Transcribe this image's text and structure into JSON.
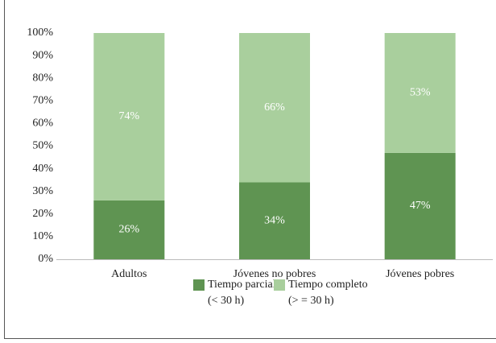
{
  "chart_data": {
    "type": "stacked_bar",
    "categories": [
      "Adultos",
      "Jóvenes no pobres",
      "Jóvenes pobres"
    ],
    "series": [
      {
        "name": "Tiempo parcial (< 30 h)",
        "color": "#5f9452",
        "values": [
          26,
          34,
          47
        ],
        "value_labels": [
          "26%",
          "34%",
          "47%"
        ]
      },
      {
        "name": "Tiempo completo (> = 30 h)",
        "color": "#a9cf9d",
        "values": [
          74,
          66,
          53
        ],
        "value_labels": [
          "74%",
          "66%",
          "53%"
        ]
      }
    ],
    "ylim": [
      0,
      100
    ],
    "yticks": [
      {
        "value": 0,
        "label": "0%"
      },
      {
        "value": 10,
        "label": "10%"
      },
      {
        "value": 20,
        "label": "20%"
      },
      {
        "value": 30,
        "label": "30%"
      },
      {
        "value": 40,
        "label": "40%"
      },
      {
        "value": 50,
        "label": "50%"
      },
      {
        "value": 60,
        "label": "60%"
      },
      {
        "value": 70,
        "label": "70%"
      },
      {
        "value": 80,
        "label": "80%"
      },
      {
        "value": 90,
        "label": "90%"
      },
      {
        "value": 100,
        "label": "100%"
      }
    ],
    "grid": false,
    "legend": "bottom"
  }
}
